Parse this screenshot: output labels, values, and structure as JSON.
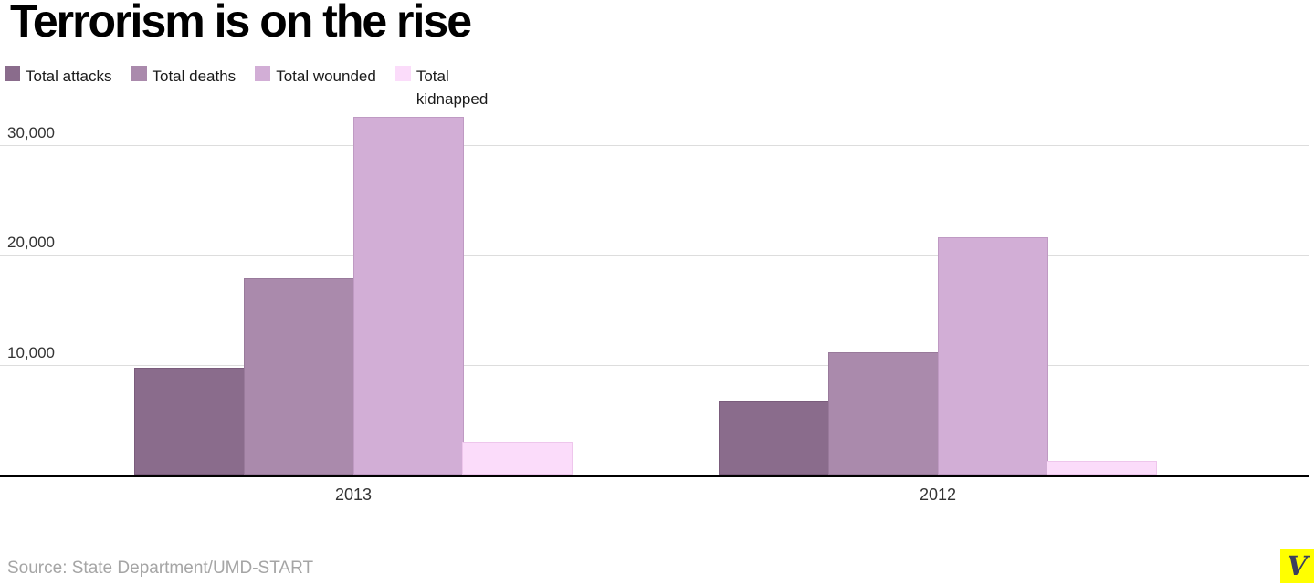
{
  "title": "Terrorism is on the rise",
  "chart_data": {
    "type": "bar",
    "categories": [
      "2013",
      "2012"
    ],
    "series": [
      {
        "name": "Total attacks",
        "color": "#8a6c8c",
        "border_color": "#7a5c7c",
        "values": [
          9707,
          6771
        ]
      },
      {
        "name": "Total deaths",
        "color": "#aa8aac",
        "border_color": "#997a9b",
        "values": [
          17891,
          11098
        ]
      },
      {
        "name": "Total wounded",
        "color": "#d2aed6",
        "border_color": "#bf9ac3",
        "values": [
          32577,
          21652
        ]
      },
      {
        "name": "Total kidnapped",
        "color": "#fbdcfa",
        "border_color": "#eec6ec",
        "values": [
          2990,
          1283
        ]
      }
    ],
    "yticks": [
      10000,
      20000,
      30000
    ],
    "ytick_labels": [
      "10,000",
      "20,000",
      "30,000"
    ],
    "ylim": [
      0,
      35000
    ],
    "grid": true,
    "legend_position": "top",
    "gridline_color": "#dddddd",
    "axis_color": "#000000"
  },
  "footer": {
    "source": "Source: State Department/UMD-START",
    "logo_letter": "V",
    "logo_bg": "#ffff00"
  }
}
